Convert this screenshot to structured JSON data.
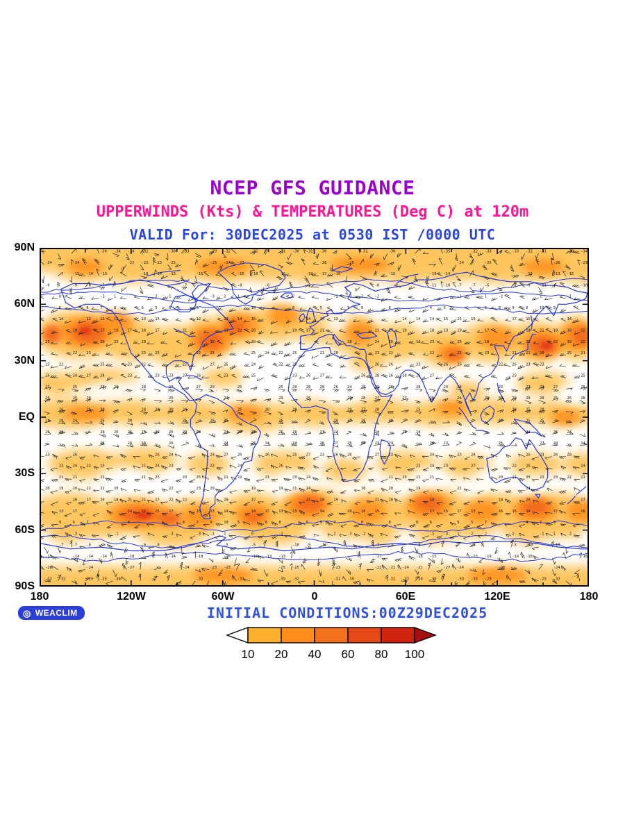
{
  "titles": {
    "line1": "NCEP GFS GUIDANCE",
    "line2": "UPPERWINDS (Kts) & TEMPERATURES (Deg C) at 120m",
    "line3": "VALID For: 30DEC2025 at 0530 IST /0000 UTC"
  },
  "map": {
    "y_ticks": [
      "90N",
      "60N",
      "30N",
      "EQ",
      "30S",
      "60S",
      "90S"
    ],
    "x_ticks": [
      "180",
      "120W",
      "60W",
      "0",
      "60E",
      "120E",
      "180"
    ]
  },
  "footer": {
    "logo_icon": "◎",
    "logo_label": "WEACLIM",
    "initial_conditions": "INITIAL CONDITIONS:00Z29DEC2025"
  },
  "legend": {
    "values": [
      "10",
      "20",
      "40",
      "60",
      "80",
      "100"
    ],
    "segment_colors": [
      "#ffb02e",
      "#ff8d1c",
      "#f3701d",
      "#e54a16",
      "#d1240f"
    ],
    "arrow_left_color": "#ffffff",
    "arrow_right_color": "#a50f0f"
  },
  "colors": {
    "title_purple": "#9a00cc",
    "title_pink": "#ff1493",
    "title_blue": "#2b46dd",
    "initial_blue": "#3050e0",
    "coastline_blue": "#2438d8",
    "logo_bg_blue": "#2e3fd8",
    "barb_black": "#111111",
    "shade_light": "#ffc257",
    "shade_mid": "#ff9422",
    "shade_strong": "#f26a1c",
    "shade_red": "#e23b14",
    "shade_dark_red": "#c21807"
  }
}
